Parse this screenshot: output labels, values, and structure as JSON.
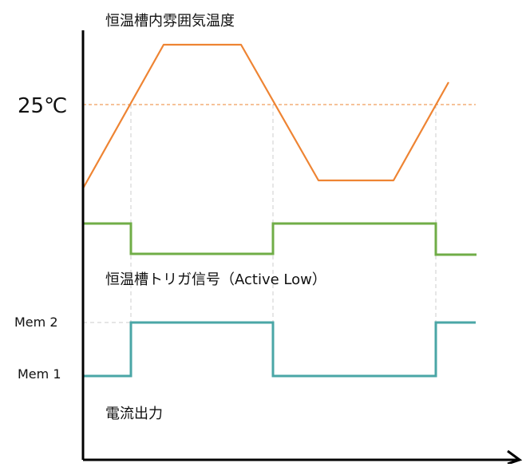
{
  "labels": {
    "temperature_title": "恒温槽内雰囲気温度",
    "threshold": "25℃",
    "trigger_title": "恒温槽トリガ信号（Active Low）",
    "mem2": "Mem 2",
    "mem1": "Mem 1",
    "current_title": "電流出力"
  },
  "colors": {
    "temperature": "#ee8433",
    "trigger": "#70ad47",
    "current": "#4aa6a6",
    "axis": "#000000",
    "guide": "#cccccc"
  }
}
